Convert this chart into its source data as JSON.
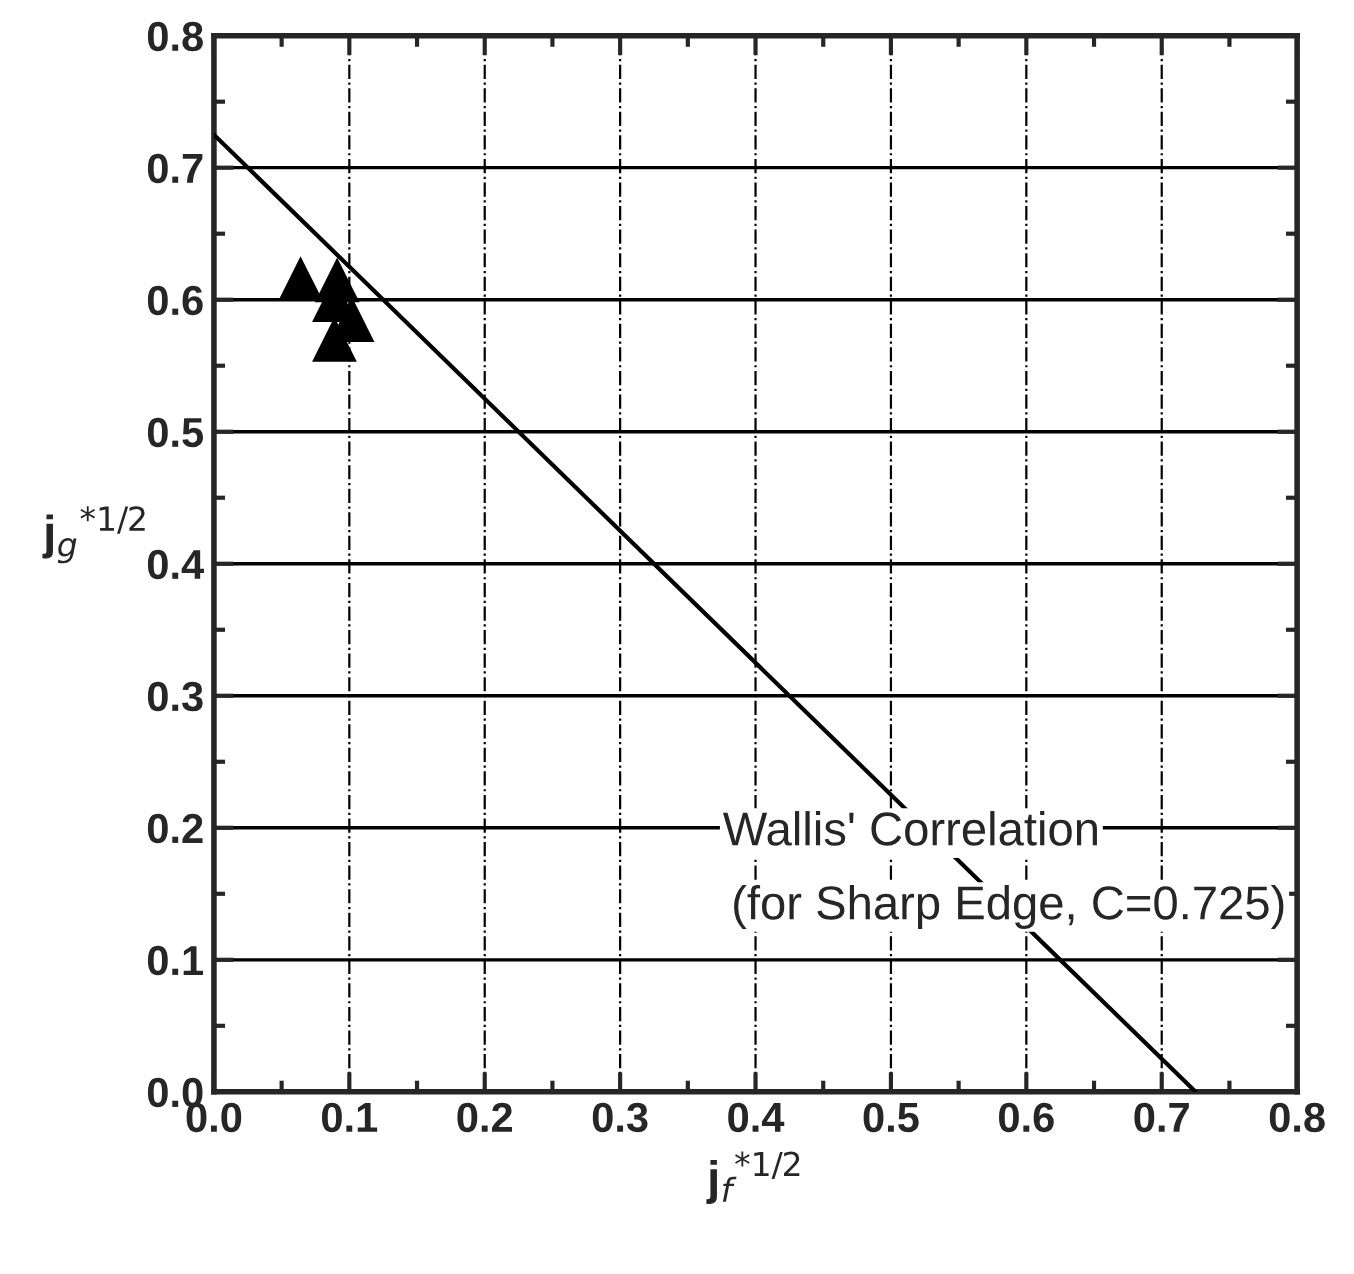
{
  "chart_data": {
    "type": "scatter",
    "xlabel": "j$_{f}$$^{*1/2}$",
    "ylabel": "j$_{g}$$^{*1/2}$",
    "series": [
      {
        "color": "#000000",
        "marker": "triangle",
        "x": [
          0.064,
          0.091,
          0.089,
          0.102,
          0.089
        ],
        "values": [
          0.616,
          0.615,
          0.6,
          0.585,
          0.57
        ]
      },
      {
        "type": "line",
        "color": "#000000",
        "marker": "none",
        "line_style": "solid",
        "x": [
          0,
          0.725
        ],
        "values": [
          0.725,
          0
        ]
      }
    ],
    "xlim": [
      0,
      0.8
    ],
    "ylim": [
      0,
      0.8
    ],
    "xticks": [
      {
        "value": 0,
        "label": "0.0"
      },
      0.1,
      0.2,
      0.3,
      0.4,
      0.5,
      0.6,
      0.7,
      0.8
    ],
    "yticks": [
      {
        "value": 0,
        "label": "0.0"
      },
      0.1,
      0.2,
      0.3,
      0.4,
      0.5,
      0.6,
      0.7,
      0.8
    ],
    "grid": true,
    "annotations": [
      "Wallis' Correlation",
      "(for Sharp Edge, C=0.725)"
    ]
  }
}
